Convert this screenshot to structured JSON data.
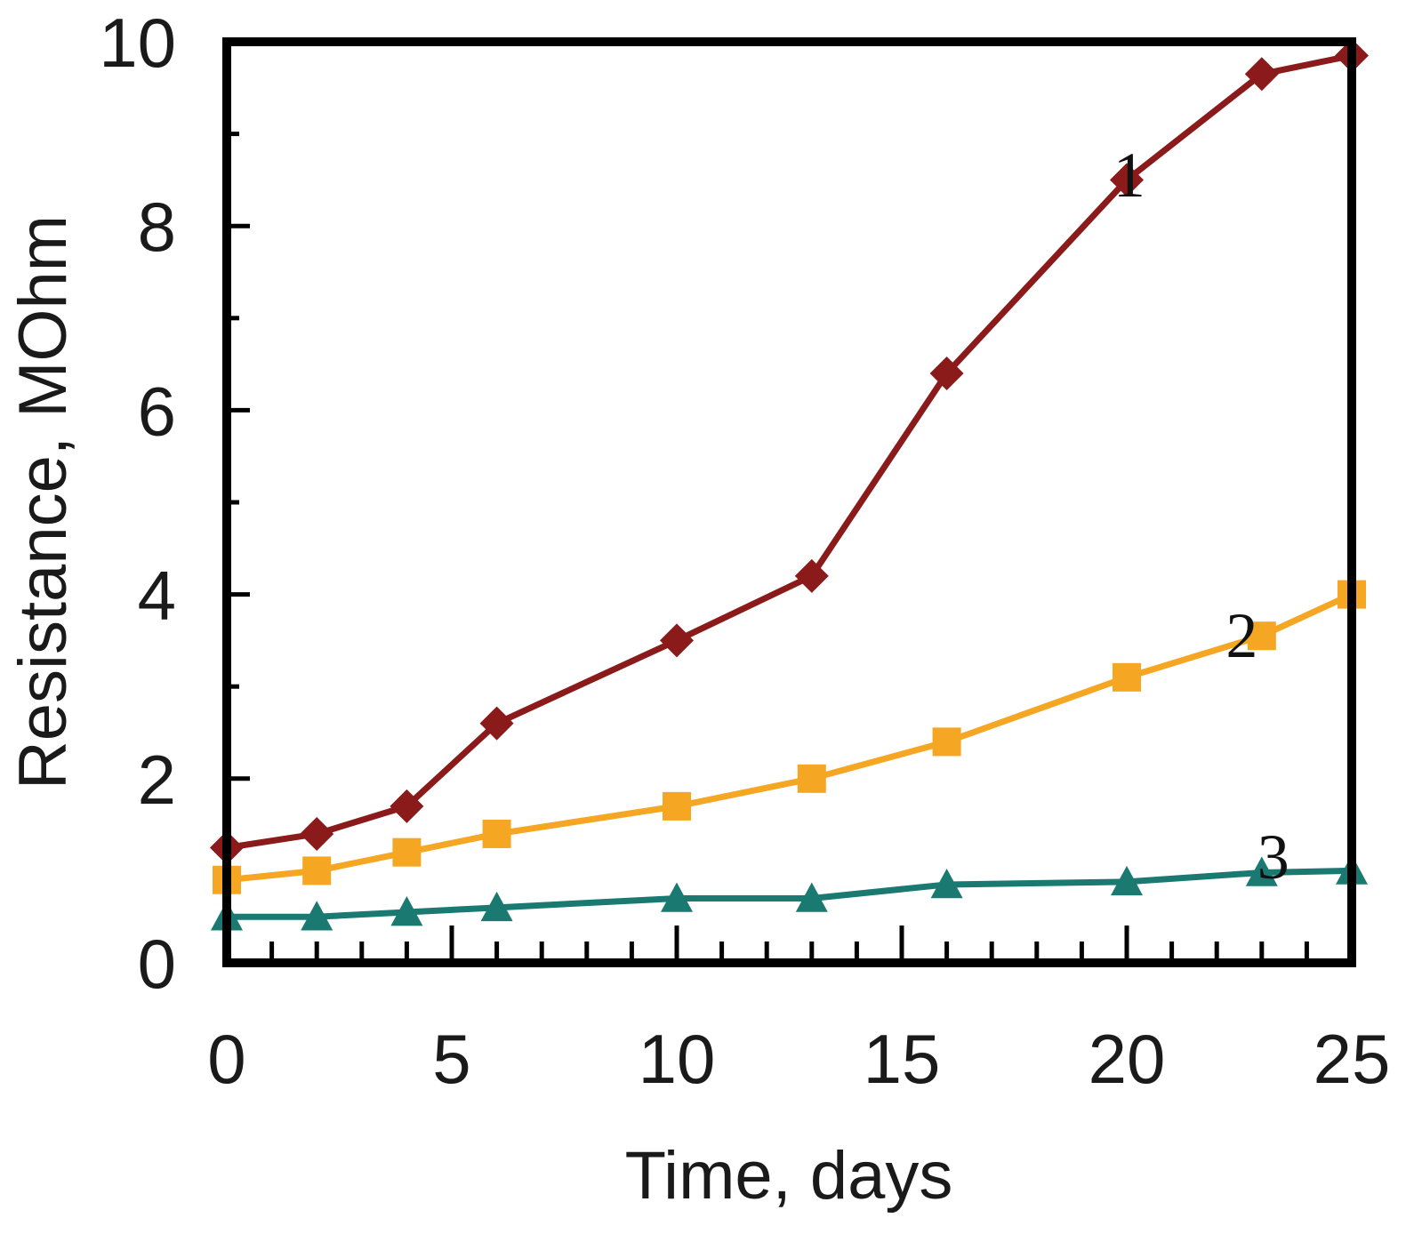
{
  "chart_data": {
    "type": "line",
    "title": "",
    "xlabel": "Time, days",
    "ylabel": "Resistance, MOhm",
    "xlim": [
      0,
      25
    ],
    "ylim": [
      0,
      10
    ],
    "xticks": [
      0,
      5,
      10,
      15,
      20,
      25
    ],
    "yticks": [
      0,
      2,
      4,
      6,
      8,
      10
    ],
    "x_minor_step": 1,
    "y_minor_step": 1,
    "grid": false,
    "series": [
      {
        "name": "1",
        "label": "1",
        "color": "#8b1a1a",
        "marker": "diamond",
        "x": [
          0,
          2,
          4,
          6,
          10,
          13,
          16,
          20,
          23,
          25
        ],
        "y": [
          1.25,
          1.4,
          1.7,
          2.6,
          3.5,
          4.2,
          6.4,
          8.5,
          9.65,
          9.85
        ],
        "label_at": {
          "x": 19.7,
          "y": 8.55
        }
      },
      {
        "name": "2",
        "label": "2",
        "color": "#f5a623",
        "marker": "square",
        "x": [
          0,
          2,
          4,
          6,
          10,
          13,
          16,
          20,
          23,
          25
        ],
        "y": [
          0.9,
          1.0,
          1.2,
          1.4,
          1.7,
          2.0,
          2.4,
          3.1,
          3.55,
          4.0
        ],
        "label_at": {
          "x": 22.2,
          "y": 3.55
        }
      },
      {
        "name": "3",
        "label": "3",
        "color": "#1a7a72",
        "marker": "triangle",
        "x": [
          0,
          2,
          4,
          6,
          10,
          13,
          16,
          20,
          23,
          25
        ],
        "y": [
          0.5,
          0.5,
          0.55,
          0.6,
          0.7,
          0.7,
          0.85,
          0.88,
          0.98,
          1.0
        ],
        "label_at": {
          "x": 22.9,
          "y": 1.15
        }
      }
    ]
  }
}
